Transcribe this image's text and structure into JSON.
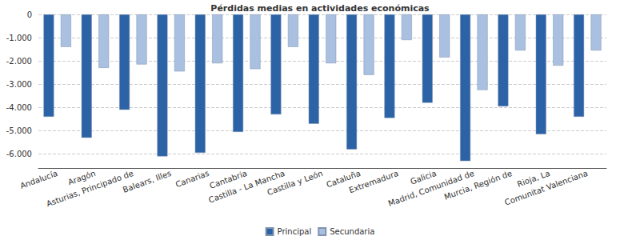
{
  "chart_data": {
    "type": "bar",
    "title": "Pérdidas medias en actividades económicas",
    "categories": [
      "Andalucía",
      "Aragón",
      "Asturias, Principado de",
      "Balears, Illes",
      "Canarias",
      "Cantabria",
      "Castilla - La Mancha",
      "Castilla y León",
      "Cataluña",
      "Extremadura",
      "Galicia",
      "Madrid, Comunidad de",
      "Murcia, Región de",
      "Rioja, La",
      "Comunitat Valenciana"
    ],
    "series": [
      {
        "name": "Principal",
        "color": "#2c62a6",
        "values": [
          -4400,
          -5300,
          -4100,
          -6100,
          -5950,
          -5050,
          -4300,
          -4700,
          -5800,
          -4450,
          -3800,
          -6300,
          -3950,
          -5150,
          -4400
        ]
      },
      {
        "name": "Secundaria",
        "color": "#aac0e0",
        "values": [
          -1400,
          -2300,
          -2150,
          -2450,
          -2100,
          -2350,
          -1400,
          -2100,
          -2600,
          -1100,
          -1850,
          -3250,
          -1550,
          -2200,
          -1550
        ]
      }
    ],
    "ylim": [
      -6600,
      0
    ],
    "yticks": [
      0,
      {
        "value": -1000,
        "label": "-1.000"
      },
      {
        "value": -2000,
        "label": "-2.000"
      },
      {
        "value": -3000,
        "label": "-3.000"
      },
      {
        "value": -4000,
        "label": "-4.000"
      },
      {
        "value": -5000,
        "label": "-5.000"
      },
      {
        "value": -6000,
        "label": "-6.000"
      }
    ],
    "grid": true,
    "legend": "bottom"
  }
}
